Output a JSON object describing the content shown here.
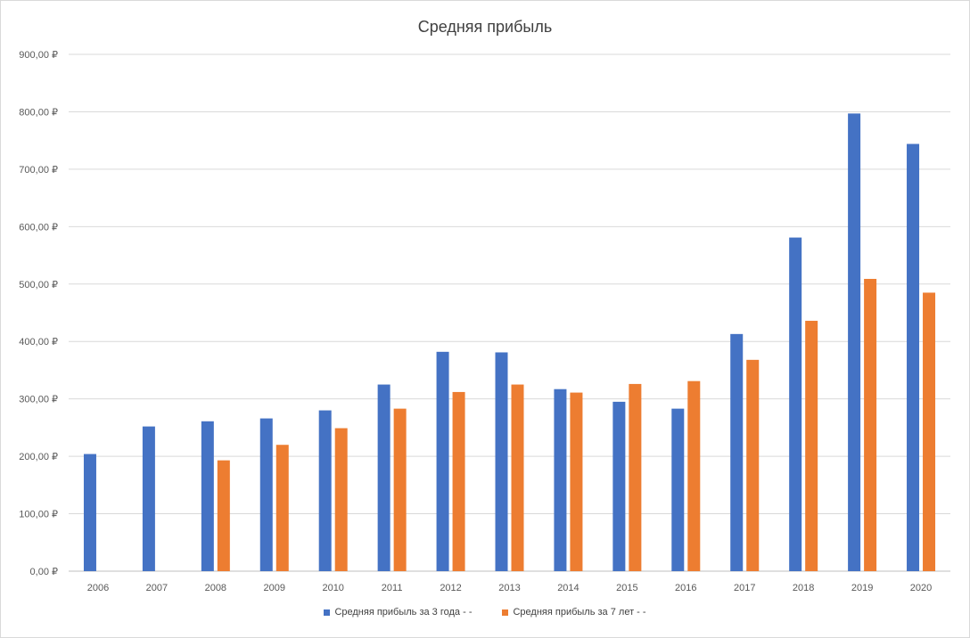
{
  "chart_data": {
    "type": "bar",
    "title": "Средняя прибыль",
    "categories": [
      "2006",
      "2007",
      "2008",
      "2009",
      "2010",
      "2011",
      "2012",
      "2013",
      "2014",
      "2015",
      "2016",
      "2017",
      "2018",
      "2019",
      "2020"
    ],
    "series": [
      {
        "name": "Средняя прибыль за 3 года  -   -",
        "color": "#4472c4",
        "values": [
          204,
          252,
          261,
          266,
          280,
          325,
          382,
          381,
          317,
          295,
          283,
          413,
          581,
          797,
          744
        ]
      },
      {
        "name": "Средняя прибыль за 7 лет  -   -",
        "color": "#ed7d31",
        "values": [
          null,
          null,
          193,
          220,
          249,
          283,
          312,
          325,
          311,
          326,
          331,
          368,
          436,
          509,
          485
        ]
      }
    ],
    "yticks": [
      "0,00 ₽",
      "100,00 ₽",
      "200,00 ₽",
      "300,00 ₽",
      "400,00 ₽",
      "500,00 ₽",
      "600,00 ₽",
      "700,00 ₽",
      "800,00 ₽",
      "900,00 ₽"
    ],
    "ylim": [
      0,
      900
    ],
    "grid": true,
    "legend_position": "bottom"
  }
}
